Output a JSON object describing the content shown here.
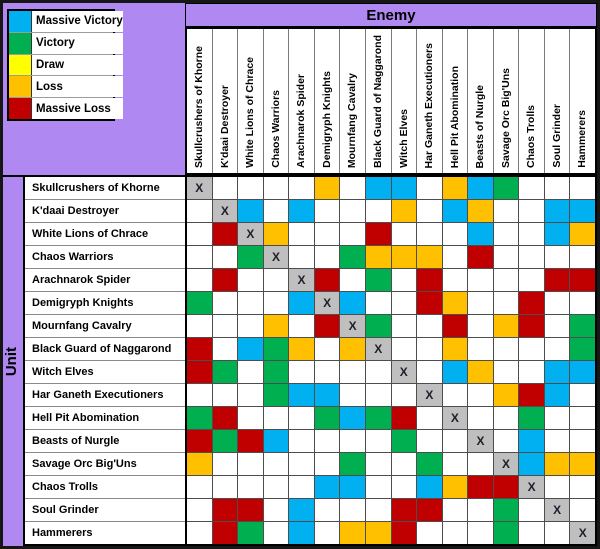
{
  "header": {
    "enemy_label": "Enemy",
    "unit_label": "Unit"
  },
  "legend": {
    "items": [
      {
        "code": "MV",
        "label": "Massive Victory",
        "color": "#00B0F0"
      },
      {
        "code": "V",
        "label": "Victory",
        "color": "#00B050"
      },
      {
        "code": "D",
        "label": "Draw",
        "color": "#FFFF00"
      },
      {
        "code": "L",
        "label": "Loss",
        "color": "#FFC000"
      },
      {
        "code": "ML",
        "label": "Massive Loss",
        "color": "#C00000"
      }
    ]
  },
  "chart_data": {
    "type": "heatmap",
    "x_axis_label": "Enemy",
    "y_axis_label": "Unit",
    "categories": [
      "Skullcrushers of Khorne",
      "K'daai Destroyer",
      "White Lions of Chrace",
      "Chaos Warriors",
      "Arachnarok Spider",
      "Demigryph Knights",
      "Mournfang Cavalry",
      "Black Guard of Naggarond",
      "Witch Elves",
      "Har Ganeth Executioners",
      "Hell Pit Abomination",
      "Beasts of Nurgle",
      "Savage Orc Big'Uns",
      "Chaos Trolls",
      "Soul Grinder",
      "Hammerers"
    ],
    "cell_code_meanings": {
      "": "blank (no result shown)",
      "MV": "Massive Victory",
      "V": "Victory",
      "D": "Draw",
      "L": "Loss",
      "ML": "Massive Loss",
      "X": "same unit (diagonal)"
    },
    "diagonal_marker": "X",
    "diagonal_color": "#BFBFBF",
    "matrix": [
      [
        "X",
        "",
        "",
        "",
        "",
        "L",
        "",
        "MV",
        "MV",
        "",
        "L",
        "MV",
        "V",
        "",
        "",
        ""
      ],
      [
        "",
        "X",
        "MV",
        "",
        "MV",
        "",
        "",
        "",
        "L",
        "",
        "MV",
        "L",
        "",
        "",
        "MV",
        "MV"
      ],
      [
        "",
        "ML",
        "X",
        "L",
        "",
        "",
        "",
        "ML",
        "",
        "",
        "",
        "MV",
        "",
        "",
        "MV",
        "L"
      ],
      [
        "",
        "",
        "V",
        "X",
        "",
        "",
        "V",
        "L",
        "L",
        "L",
        "",
        "ML",
        "",
        "",
        "",
        ""
      ],
      [
        "",
        "ML",
        "",
        "",
        "X",
        "ML",
        "",
        "V",
        "",
        "ML",
        "",
        "",
        "",
        "",
        "ML",
        "ML"
      ],
      [
        "V",
        "",
        "",
        "",
        "MV",
        "X",
        "MV",
        "",
        "",
        "ML",
        "L",
        "",
        "",
        "ML",
        "",
        ""
      ],
      [
        "",
        "",
        "",
        "L",
        "",
        "ML",
        "X",
        "V",
        "",
        "",
        "ML",
        "",
        "L",
        "ML",
        "",
        "V"
      ],
      [
        "ML",
        "",
        "MV",
        "V",
        "L",
        "",
        "L",
        "X",
        "",
        "",
        "L",
        "",
        "",
        "",
        "",
        "V"
      ],
      [
        "ML",
        "V",
        "",
        "V",
        "",
        "",
        "",
        "",
        "X",
        "",
        "MV",
        "L",
        "",
        "",
        "MV",
        "MV"
      ],
      [
        "",
        "",
        "",
        "V",
        "MV",
        "MV",
        "",
        "",
        "",
        "X",
        "",
        "",
        "L",
        "ML",
        "MV",
        ""
      ],
      [
        "V",
        "ML",
        "",
        "",
        "",
        "V",
        "MV",
        "V",
        "ML",
        "",
        "X",
        "",
        "",
        "V",
        "",
        ""
      ],
      [
        "ML",
        "V",
        "ML",
        "MV",
        "",
        "",
        "",
        "",
        "V",
        "",
        "",
        "X",
        "",
        "MV",
        "",
        ""
      ],
      [
        "L",
        "",
        "",
        "",
        "",
        "",
        "V",
        "",
        "",
        "V",
        "",
        "",
        "X",
        "MV",
        "L",
        "L"
      ],
      [
        "",
        "",
        "",
        "",
        "",
        "MV",
        "MV",
        "",
        "",
        "MV",
        "L",
        "ML",
        "ML",
        "X",
        "",
        ""
      ],
      [
        "",
        "ML",
        "ML",
        "",
        "MV",
        "",
        "",
        "",
        "ML",
        "ML",
        "",
        "",
        "V",
        "",
        "X",
        ""
      ],
      [
        "",
        "ML",
        "V",
        "",
        "MV",
        "",
        "L",
        "L",
        "ML",
        "",
        "",
        "",
        "V",
        "",
        "",
        "X"
      ]
    ]
  }
}
